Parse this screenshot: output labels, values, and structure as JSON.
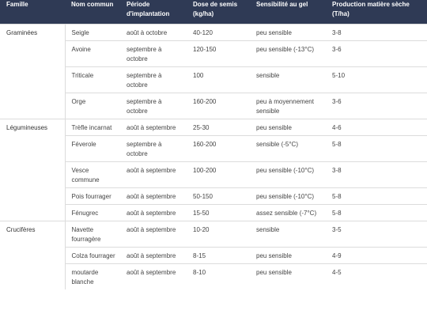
{
  "headers": {
    "famille": "Famille",
    "nom": "Nom commun",
    "periode": "Période d'implantation",
    "dose": "Dose de semis (kg/ha)",
    "sensibilite": "Sensibilité au gel",
    "production": "Production matière sèche (T/ha)"
  },
  "groups": [
    {
      "famille": "Graminées",
      "rows": [
        {
          "nom": "Seigle",
          "periode": "août à octobre",
          "dose": "40-120",
          "sensibilite": "peu sensible",
          "production": "3-8"
        },
        {
          "nom": "Avoine",
          "periode": "septembre à octobre",
          "dose": "120-150",
          "sensibilite": "peu sensible (-13°C)",
          "production": "3-6"
        },
        {
          "nom": "Triticale",
          "periode": "septembre à octobre",
          "dose": "100",
          "sensibilite": "sensible",
          "production": "5-10"
        },
        {
          "nom": "Orge",
          "periode": "septembre à octobre",
          "dose": "160-200",
          "sensibilite": "peu à moyennement sensible",
          "production": "3-6"
        }
      ]
    },
    {
      "famille": "Légumineuses",
      "rows": [
        {
          "nom": "Trèfle incarnat",
          "periode": "août à septembre",
          "dose": "25-30",
          "sensibilite": "peu sensible",
          "production": "4-6"
        },
        {
          "nom": "Féverole",
          "periode": "septembre à octobre",
          "dose": "160-200",
          "sensibilite": "sensible (-5°C)",
          "production": "5-8"
        },
        {
          "nom": "Vesce commune",
          "periode": "août à septembre",
          "dose": "100-200",
          "sensibilite": "peu sensible (-10°C)",
          "production": "3-8"
        },
        {
          "nom": "Pois fourrager",
          "periode": "août à septembre",
          "dose": "50-150",
          "sensibilite": "peu sensible (-10°C)",
          "production": "5-8"
        },
        {
          "nom": "Fénugrec",
          "periode": "août à septembre",
          "dose": "15-50",
          "sensibilite": "assez sensible (-7°C)",
          "production": "5-8"
        }
      ]
    },
    {
      "famille": "Crucifères",
      "rows": [
        {
          "nom": "Navette fourragère",
          "periode": "août à septembre",
          "dose": "10-20",
          "sensibilite": "sensible",
          "production": "3-5"
        },
        {
          "nom": "Colza fourrager",
          "periode": "août à septembre",
          "dose": "8-15",
          "sensibilite": "peu sensible",
          "production": "4-9"
        },
        {
          "nom": "moutarde blanche",
          "periode": "août à septembre",
          "dose": "8-10",
          "sensibilite": "peu sensible",
          "production": "4-5"
        }
      ]
    }
  ]
}
